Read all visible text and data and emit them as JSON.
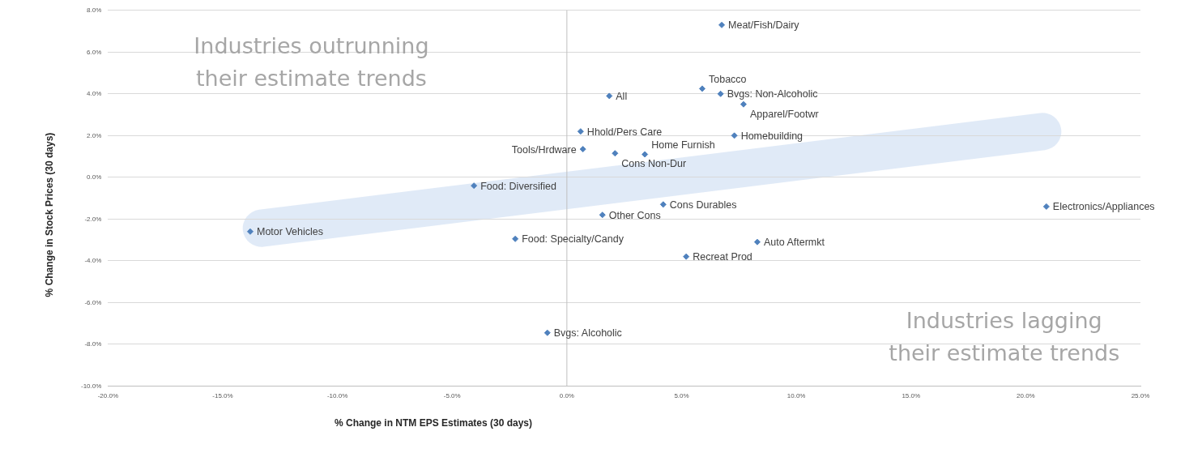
{
  "chart_data": {
    "type": "scatter",
    "xlabel": "% Change in NTM EPS Estimates (30 days)",
    "ylabel": "% Change in Stock Prices (30 days)",
    "annotations": [
      "Industries outrunning\ntheir estimate trends",
      "Industries lagging\ntheir estimate trends"
    ],
    "xlim": [
      -20,
      25
    ],
    "xticks": [
      {
        "value": -20,
        "label": "-20.0%"
      },
      {
        "value": -15,
        "label": "-15.0%"
      },
      {
        "value": -10,
        "label": "-10.0%"
      },
      {
        "value": -5,
        "label": "-5.0%"
      },
      {
        "value": 0,
        "label": "0.0%"
      },
      {
        "value": 5,
        "label": "5.0%"
      },
      {
        "value": 10,
        "label": "10.0%"
      },
      {
        "value": 15,
        "label": "15.0%"
      },
      {
        "value": 20,
        "label": "20.0%"
      },
      {
        "value": 25,
        "label": "25.0%"
      }
    ],
    "ylim": [
      -10,
      8
    ],
    "yticks": [
      {
        "value": -10,
        "label": "-10.0%"
      },
      {
        "value": -8,
        "label": "-8.0%"
      },
      {
        "value": -6,
        "label": "-6.0%"
      },
      {
        "value": -4,
        "label": "-4.0%"
      },
      {
        "value": -2,
        "label": "-2.0%"
      },
      {
        "value": 0,
        "label": "0.0%"
      },
      {
        "value": 2,
        "label": "2.0%"
      },
      {
        "value": 4,
        "label": "4.0%"
      },
      {
        "value": 6,
        "label": "6.0%"
      },
      {
        "value": 8,
        "label": "8.0%"
      }
    ],
    "grid": "y",
    "marker": "diamond",
    "legend": false,
    "ref_lines": [
      {
        "axis": "x",
        "value": 0,
        "color": "#bfbfbf"
      }
    ],
    "series": [
      {
        "name": "Meat/Fish/Dairy",
        "color": "#4f81bd",
        "x": [
          6.75
        ],
        "values": [
          7.3
        ]
      },
      {
        "name": "Tobacco",
        "color": "#4f81bd",
        "x": [
          5.9
        ],
        "values": [
          4.25
        ]
      },
      {
        "name": "Bvgs: Non-Alcoholic",
        "color": "#4f81bd",
        "x": [
          6.7
        ],
        "values": [
          4.0
        ]
      },
      {
        "name": "Apparel/Footwr",
        "color": "#4f81bd",
        "x": [
          7.7
        ],
        "values": [
          3.5
        ]
      },
      {
        "name": "All",
        "color": "#4f81bd",
        "x": [
          1.85
        ],
        "values": [
          3.9
        ]
      },
      {
        "name": "Hhold/Pers Care",
        "color": "#4f81bd",
        "x": [
          0.6
        ],
        "values": [
          2.2
        ]
      },
      {
        "name": "Homebuilding",
        "color": "#4f81bd",
        "x": [
          7.3
        ],
        "values": [
          2.0
        ]
      },
      {
        "name": "Tools/Hrdware",
        "color": "#4f81bd",
        "x": [
          0.7
        ],
        "values": [
          1.35
        ]
      },
      {
        "name": "Cons Non-Dur",
        "color": "#4f81bd",
        "x": [
          2.1
        ],
        "values": [
          1.15
        ]
      },
      {
        "name": "Home Furnish",
        "color": "#4f81bd",
        "x": [
          3.4
        ],
        "values": [
          1.1
        ]
      },
      {
        "name": "Food: Diversified",
        "color": "#4f81bd",
        "x": [
          -4.05
        ],
        "values": [
          -0.4
        ]
      },
      {
        "name": "Cons Durables",
        "color": "#4f81bd",
        "x": [
          4.2
        ],
        "values": [
          -1.3
        ]
      },
      {
        "name": "Other Cons",
        "color": "#4f81bd",
        "x": [
          1.55
        ],
        "values": [
          -1.8
        ]
      },
      {
        "name": "Electronics/Appliances",
        "color": "#4f81bd",
        "x": [
          20.9
        ],
        "values": [
          -1.4
        ]
      },
      {
        "name": "Motor Vehicles",
        "color": "#4f81bd",
        "x": [
          -13.8
        ],
        "values": [
          -2.6
        ]
      },
      {
        "name": "Food: Specialty/Candy",
        "color": "#4f81bd",
        "x": [
          -2.25
        ],
        "values": [
          -2.95
        ]
      },
      {
        "name": "Auto Aftermkt",
        "color": "#4f81bd",
        "x": [
          8.3
        ],
        "values": [
          -3.1
        ]
      },
      {
        "name": "Recreat Prod",
        "color": "#4f81bd",
        "x": [
          5.2
        ],
        "values": [
          -3.8
        ]
      },
      {
        "name": "Bvgs: Alcoholic",
        "color": "#4f81bd",
        "x": [
          -0.85
        ],
        "values": [
          -7.45
        ]
      }
    ]
  }
}
